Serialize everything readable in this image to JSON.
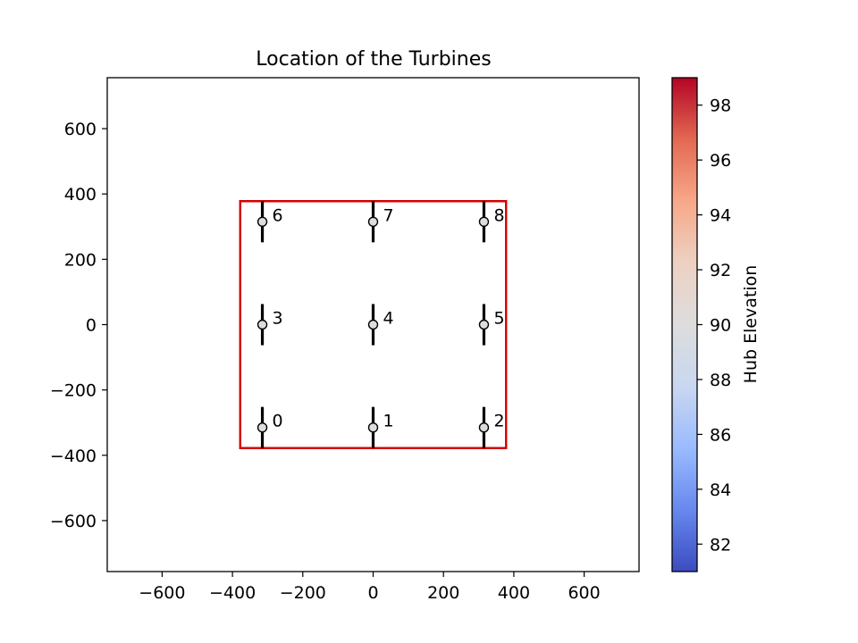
{
  "chart_data": {
    "type": "scatter",
    "title": "Location of the Turbines",
    "xlabel": "",
    "ylabel": "",
    "xlim": [
      -756,
      756
    ],
    "ylim": [
      -756,
      756
    ],
    "xticks": [
      -600,
      -400,
      -200,
      0,
      200,
      400,
      600
    ],
    "yticks": [
      -600,
      -400,
      -200,
      0,
      200,
      400,
      600
    ],
    "xtick_labels": [
      "−600",
      "−400",
      "−200",
      "0",
      "200",
      "400",
      "600"
    ],
    "ytick_labels": [
      "−600",
      "−400",
      "−200",
      "0",
      "200",
      "400",
      "600"
    ],
    "grid": false,
    "turbines": [
      {
        "label": "0",
        "x": -315,
        "y": -315,
        "hub_elevation": 90
      },
      {
        "label": "1",
        "x": 0,
        "y": -315,
        "hub_elevation": 90
      },
      {
        "label": "2",
        "x": 315,
        "y": -315,
        "hub_elevation": 90
      },
      {
        "label": "3",
        "x": -315,
        "y": 0,
        "hub_elevation": 90
      },
      {
        "label": "4",
        "x": 0,
        "y": 0,
        "hub_elevation": 90
      },
      {
        "label": "5",
        "x": 315,
        "y": 0,
        "hub_elevation": 90
      },
      {
        "label": "6",
        "x": -315,
        "y": 315,
        "hub_elevation": 90
      },
      {
        "label": "7",
        "x": 0,
        "y": 315,
        "hub_elevation": 90
      },
      {
        "label": "8",
        "x": 315,
        "y": 315,
        "hub_elevation": 90
      }
    ],
    "rotor_span": 126,
    "boundary": {
      "color": "#d40000",
      "points": [
        [
          -378,
          -378
        ],
        [
          378,
          -378
        ],
        [
          378,
          378
        ],
        [
          -378,
          378
        ]
      ]
    },
    "colorbar": {
      "label": "Hub Elevation",
      "range": [
        81,
        99
      ],
      "ticks": [
        82,
        84,
        86,
        88,
        90,
        92,
        94,
        96,
        98
      ],
      "colormap": "coolwarm",
      "stops": [
        "#3b4cc0",
        "#6788ee",
        "#9abbff",
        "#c9d7f0",
        "#dddddd",
        "#edd1c2",
        "#f7a889",
        "#e26952",
        "#b40426"
      ]
    }
  }
}
